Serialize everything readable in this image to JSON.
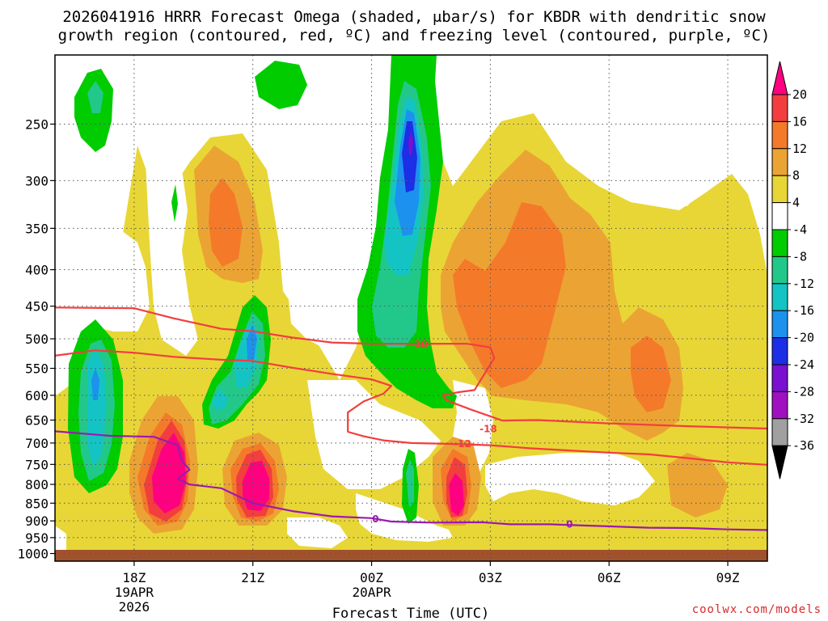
{
  "chart_data": {
    "type": "heatmap",
    "title": "2026041916 HRRR Forecast Omega (shaded, μbar/s) for KBDR with dendritic snow",
    "subtitle": "growth region (contoured, red, ºC) and freezing level (contoured, purple, ºC)",
    "xlabel": "Forecast Time (UTC)",
    "ylabel": "",
    "x_ticks": [
      {
        "label": "18Z",
        "sub1": "19APR",
        "sub2": "2026",
        "hour": 18
      },
      {
        "label": "21Z",
        "sub1": "",
        "sub2": "",
        "hour": 21
      },
      {
        "label": "00Z",
        "sub1": "20APR",
        "sub2": "",
        "hour": 24
      },
      {
        "label": "03Z",
        "sub1": "",
        "sub2": "",
        "hour": 27
      },
      {
        "label": "06Z",
        "sub1": "",
        "sub2": "",
        "hour": 30
      },
      {
        "label": "09Z",
        "sub1": "",
        "sub2": "",
        "hour": 33
      }
    ],
    "xlim": [
      16,
      34
    ],
    "y_ticks": [
      250,
      300,
      350,
      400,
      450,
      500,
      550,
      600,
      650,
      700,
      750,
      800,
      850,
      900,
      950,
      1000
    ],
    "ylim": [
      1025,
      200
    ],
    "y_scale": "log-pressure",
    "grid": true,
    "colorbar": {
      "levels": [
        "20",
        "16",
        "12",
        "8",
        "4",
        "-4",
        "-8",
        "-12",
        "-16",
        "-20",
        "-24",
        "-28",
        "-32",
        "-36"
      ],
      "colors": [
        "#ff0080",
        "#f23e3e",
        "#f47a2a",
        "#eba433",
        "#e8d636",
        "#ffffff",
        "#00cc00",
        "#22c88a",
        "#14c4c4",
        "#1c92ee",
        "#1c2ee6",
        "#7a10d0",
        "#a010c0",
        "#a0a0a0",
        "#000000"
      ]
    },
    "contours": [
      {
        "name": "dgz_top",
        "color": "#f23e3e",
        "label": "-18",
        "points": [
          [
            16,
            452
          ],
          [
            18,
            453
          ],
          [
            19,
            468
          ],
          [
            20.2,
            484
          ],
          [
            21,
            488
          ],
          [
            22,
            498
          ],
          [
            23,
            506
          ],
          [
            24,
            508
          ],
          [
            25,
            508
          ],
          [
            26.4,
            508
          ],
          [
            27,
            514
          ],
          [
            27.1,
            532
          ],
          [
            26.6,
            590
          ],
          [
            26.2,
            594
          ],
          [
            25.8,
            600
          ],
          [
            25.9,
            610
          ],
          [
            26.5,
            628
          ],
          [
            27.3,
            651
          ],
          [
            28.2,
            650
          ],
          [
            30,
            657
          ],
          [
            32,
            663
          ],
          [
            34,
            668
          ]
        ]
      },
      {
        "name": "dgz_bottom",
        "color": "#f23e3e",
        "label": "-12",
        "points": [
          [
            16,
            528
          ],
          [
            17,
            519
          ],
          [
            18,
            523
          ],
          [
            19,
            530
          ],
          [
            20.2,
            535
          ],
          [
            21,
            537
          ],
          [
            22,
            549
          ],
          [
            23,
            560
          ],
          [
            24,
            570
          ],
          [
            24.5,
            582
          ],
          [
            24.3,
            597
          ],
          [
            23.8,
            612
          ],
          [
            23.4,
            634
          ],
          [
            23.4,
            675
          ],
          [
            23.8,
            685
          ],
          [
            24.3,
            694
          ],
          [
            25,
            700
          ],
          [
            26,
            702
          ],
          [
            27,
            705
          ],
          [
            28,
            712
          ],
          [
            29,
            717
          ],
          [
            30,
            722
          ],
          [
            31,
            726
          ],
          [
            32,
            735
          ],
          [
            33,
            745
          ],
          [
            34,
            751
          ]
        ]
      },
      {
        "name": "freezing_level",
        "color": "#9a1ab0",
        "label": "0",
        "points": [
          [
            16,
            674
          ],
          [
            17.4,
            684
          ],
          [
            18.5,
            686
          ],
          [
            19.1,
            705
          ],
          [
            19.2,
            740
          ],
          [
            19.4,
            763
          ],
          [
            19.1,
            786
          ],
          [
            19.4,
            800
          ],
          [
            20.2,
            810
          ],
          [
            21,
            850
          ],
          [
            22,
            872
          ],
          [
            23,
            887
          ],
          [
            24,
            892
          ],
          [
            24.5,
            902
          ],
          [
            25.5,
            905
          ],
          [
            26.8,
            904
          ],
          [
            27.5,
            910
          ],
          [
            28.5,
            910
          ],
          [
            29.5,
            914
          ],
          [
            31,
            920
          ],
          [
            32,
            921
          ],
          [
            33,
            925
          ],
          [
            34,
            927
          ]
        ]
      }
    ],
    "contour_labels": [
      {
        "text": "-18",
        "hour": 25.2,
        "p": 508,
        "color": "#f23e3e"
      },
      {
        "text": "-18",
        "hour": 26.95,
        "p": 667,
        "color": "#f23e3e"
      },
      {
        "text": "-12",
        "hour": 26.3,
        "p": 700,
        "color": "#f23e3e"
      },
      {
        "text": "0",
        "hour": 24.1,
        "p": 892,
        "color": "#9a1ab0"
      },
      {
        "text": "0",
        "hour": 29.0,
        "p": 908,
        "color": "#9a1ab0"
      }
    ]
  },
  "credit": "coolwx.com/models"
}
